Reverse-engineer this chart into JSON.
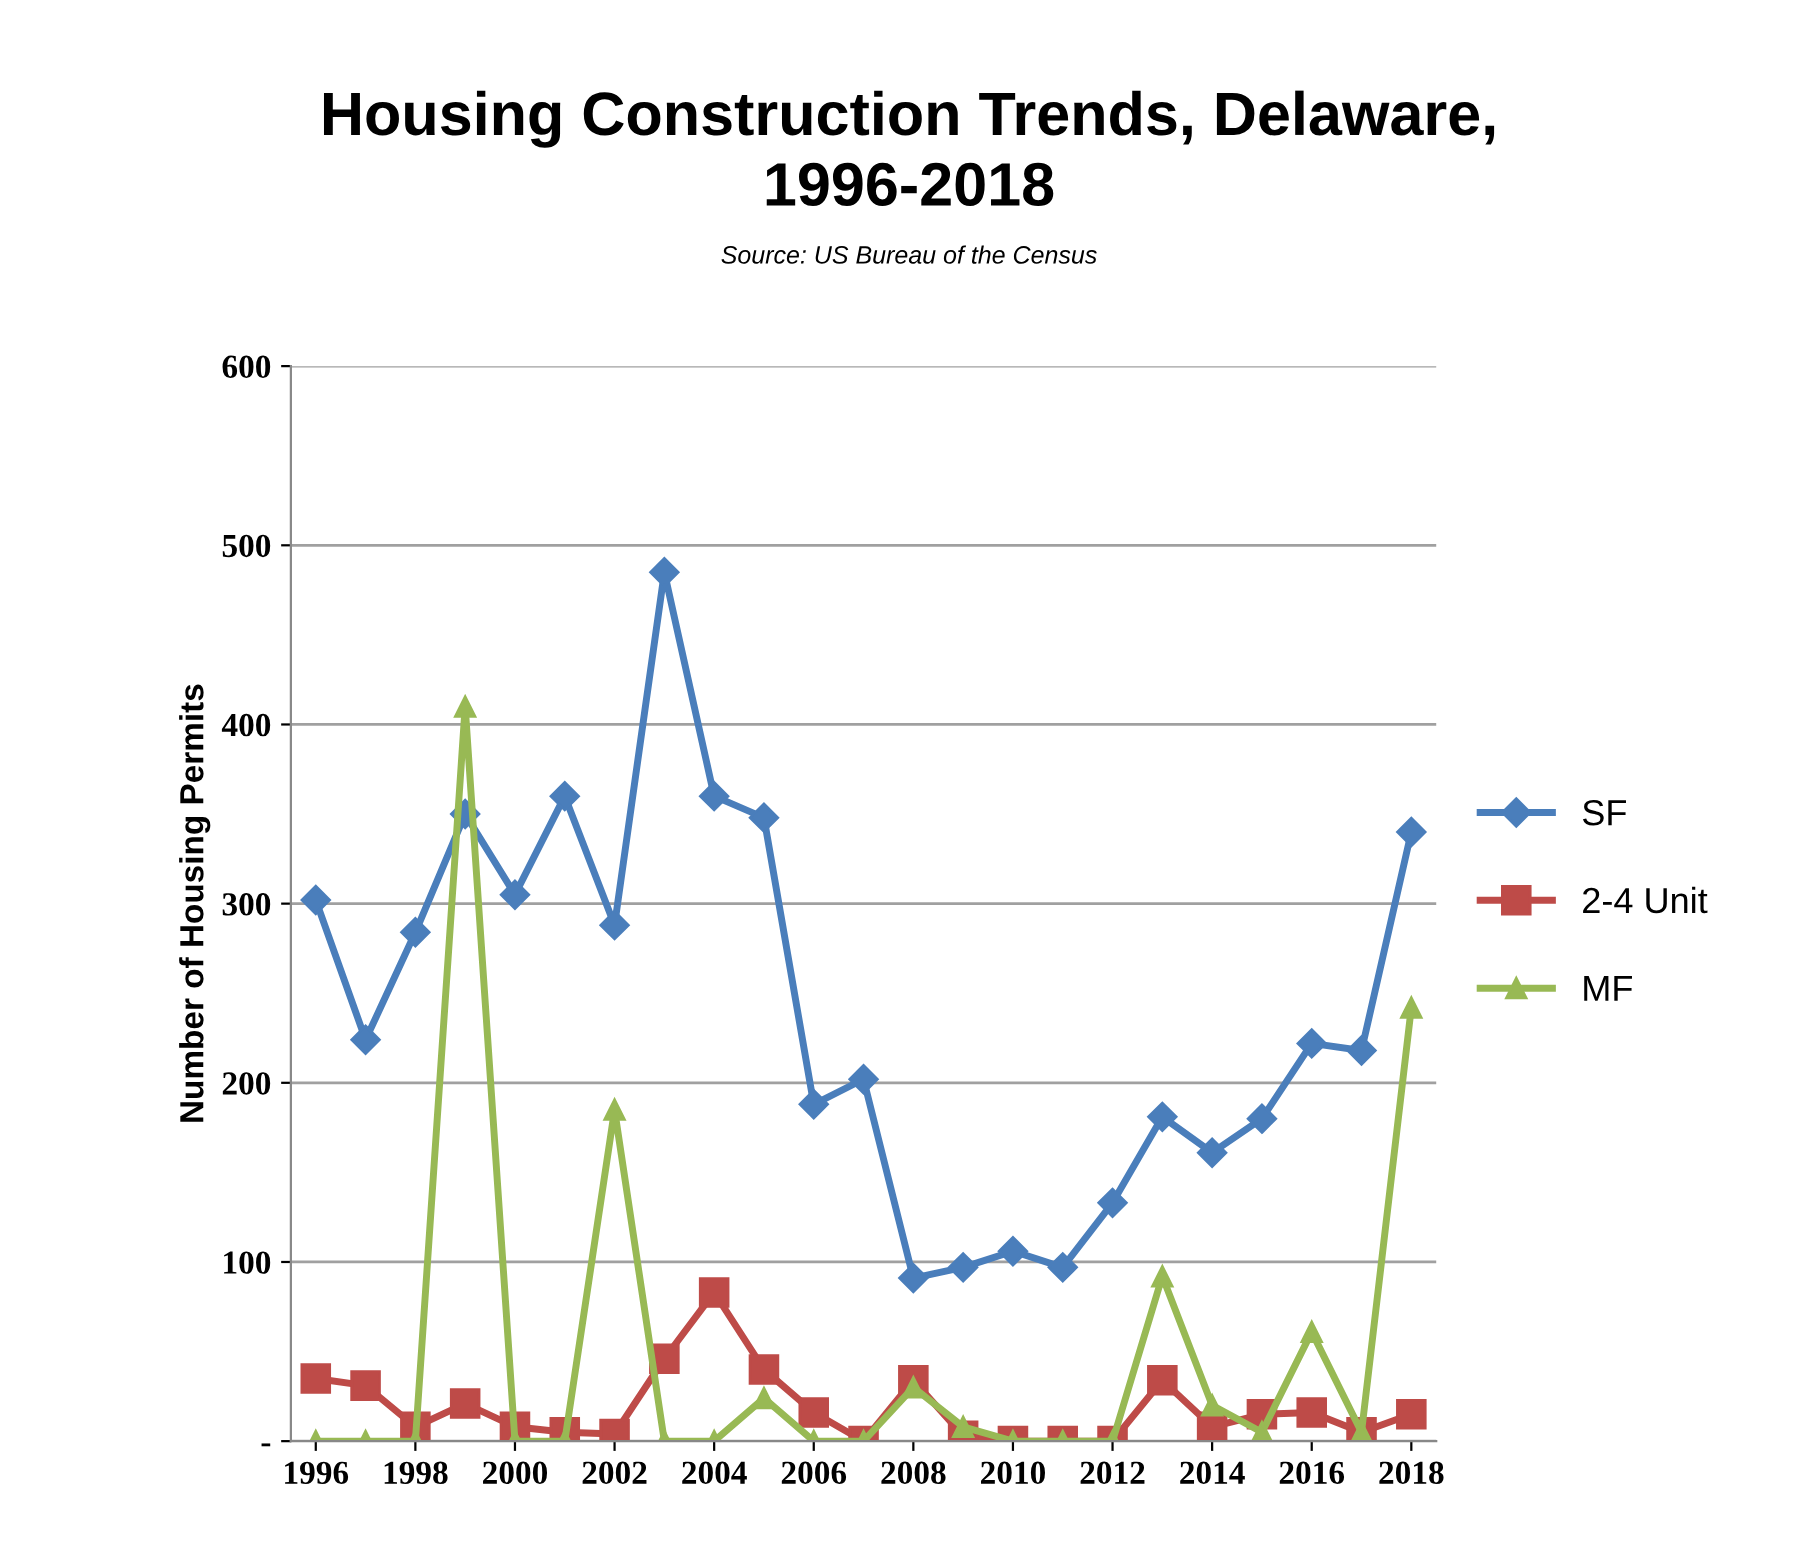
{
  "chart_data": {
    "type": "line",
    "title": "Housing Construction Trends, Delaware,\n1996-2018",
    "subtitle": "Source: US Bureau of the Census",
    "ylabel": "Number of Housing Permits",
    "x": [
      1996,
      1997,
      1998,
      1999,
      2000,
      2001,
      2002,
      2003,
      2004,
      2005,
      2006,
      2007,
      2008,
      2009,
      2010,
      2011,
      2012,
      2013,
      2014,
      2015,
      2016,
      2017,
      2018
    ],
    "series": [
      {
        "name": "SF",
        "color": "#4a7ebb",
        "marker": "diamond",
        "values": [
          302,
          224,
          284,
          350,
          305,
          360,
          288,
          485,
          360,
          348,
          188,
          202,
          91,
          97,
          106,
          97,
          133,
          181,
          161,
          180,
          222,
          218,
          340
        ]
      },
      {
        "name": "2-4 Unit",
        "color": "#be4b48",
        "marker": "square",
        "values": [
          35,
          31,
          8,
          21,
          8,
          5,
          4,
          46,
          83,
          40,
          16,
          0,
          34,
          3,
          0,
          0,
          0,
          34,
          8,
          15,
          16,
          5,
          15
        ]
      },
      {
        "name": "MF",
        "color": "#98b954",
        "marker": "triangle",
        "values": [
          0,
          0,
          0,
          410,
          0,
          0,
          185,
          0,
          0,
          24,
          0,
          0,
          30,
          8,
          0,
          0,
          0,
          92,
          20,
          5,
          61,
          5,
          242
        ]
      }
    ],
    "xlim": [
      1995.5,
      2018.5
    ],
    "xticks": [
      1996,
      1998,
      2000,
      2002,
      2004,
      2006,
      2008,
      2010,
      2012,
      2014,
      2016,
      2018
    ],
    "ylim": [
      0,
      600
    ],
    "yticks": [
      {
        "value": 0,
        "label": "-"
      },
      100,
      200,
      300,
      400,
      500,
      600
    ],
    "grid": "y",
    "legend": "right",
    "line_style": "solid"
  }
}
